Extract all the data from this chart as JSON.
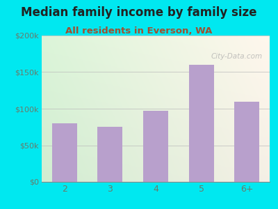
{
  "title": "Median family income by family size",
  "subtitle": "All residents in Everson, WA",
  "categories": [
    "2",
    "3",
    "4",
    "5",
    "6+"
  ],
  "values": [
    80000,
    75000,
    97000,
    160000,
    110000
  ],
  "bar_color": "#b8a0cc",
  "title_fontsize": 12,
  "subtitle_fontsize": 9.5,
  "title_color": "#222222",
  "subtitle_color": "#a05030",
  "tick_label_color": "#6a7a6a",
  "background_outer": "#00e8f0",
  "ylim": [
    0,
    200000
  ],
  "yticks": [
    0,
    50000,
    100000,
    150000,
    200000
  ],
  "ytick_labels": [
    "$0",
    "$50k",
    "$100k",
    "$150k",
    "$200k"
  ],
  "watermark": "City-Data.com",
  "grid_color": "#bbbbbb"
}
